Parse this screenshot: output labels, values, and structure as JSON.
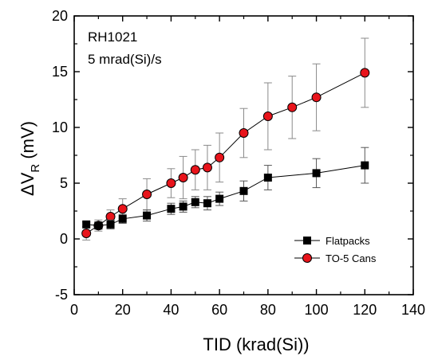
{
  "chart_data": {
    "type": "scatter",
    "x_axis": {
      "label": "TID (krad(Si))",
      "range": [
        0,
        140
      ],
      "ticks": [
        0,
        20,
        40,
        60,
        80,
        100,
        120,
        140
      ]
    },
    "y_axis": {
      "label_main": "ΔV",
      "label_sub": "R",
      "label_unit": " (mV)",
      "range": [
        -5,
        20
      ],
      "ticks": [
        -5,
        0,
        5,
        10,
        15,
        20
      ]
    },
    "annotations": [
      "RH1021",
      "5 mrad(Si)/s"
    ],
    "legend_position": "bottom-right",
    "grid": false,
    "series": [
      {
        "name": "Flatpacks",
        "marker": "square",
        "color": "#000000",
        "points": [
          {
            "x": 5,
            "y": 1.3,
            "err": 0.2
          },
          {
            "x": 10,
            "y": 1.2,
            "err": 0.3
          },
          {
            "x": 15,
            "y": 1.3,
            "err": 0.4
          },
          {
            "x": 20,
            "y": 1.8,
            "err": 0.4
          },
          {
            "x": 30,
            "y": 2.1,
            "err": 0.5
          },
          {
            "x": 40,
            "y": 2.7,
            "err": 0.5
          },
          {
            "x": 45,
            "y": 2.9,
            "err": 0.5
          },
          {
            "x": 50,
            "y": 3.3,
            "err": 0.5
          },
          {
            "x": 55,
            "y": 3.2,
            "err": 0.6
          },
          {
            "x": 60,
            "y": 3.6,
            "err": 0.6
          },
          {
            "x": 70,
            "y": 4.3,
            "err": 0.9
          },
          {
            "x": 80,
            "y": 5.5,
            "err": 1.1
          },
          {
            "x": 100,
            "y": 5.9,
            "err": 1.3
          },
          {
            "x": 120,
            "y": 6.6,
            "err": 1.6
          }
        ]
      },
      {
        "name": "TO-5 Cans",
        "marker": "circle",
        "color": "#e8141b",
        "points": [
          {
            "x": 5,
            "y": 0.5,
            "err": 0.6
          },
          {
            "x": 10,
            "y": 1.2,
            "err": 0.5
          },
          {
            "x": 15,
            "y": 2.0,
            "err": 0.6
          },
          {
            "x": 20,
            "y": 2.7,
            "err": 0.9
          },
          {
            "x": 30,
            "y": 4.0,
            "err": 1.4
          },
          {
            "x": 40,
            "y": 5.0,
            "err": 1.3
          },
          {
            "x": 45,
            "y": 5.5,
            "err": 1.9
          },
          {
            "x": 50,
            "y": 6.2,
            "err": 1.8
          },
          {
            "x": 55,
            "y": 6.4,
            "err": 2.0
          },
          {
            "x": 60,
            "y": 7.3,
            "err": 2.2
          },
          {
            "x": 70,
            "y": 9.5,
            "err": 2.2
          },
          {
            "x": 80,
            "y": 11.0,
            "err": 3.0
          },
          {
            "x": 90,
            "y": 11.8,
            "err": 2.8
          },
          {
            "x": 100,
            "y": 12.7,
            "err": 3.0
          },
          {
            "x": 120,
            "y": 14.9,
            "err": 3.1
          }
        ]
      }
    ]
  }
}
